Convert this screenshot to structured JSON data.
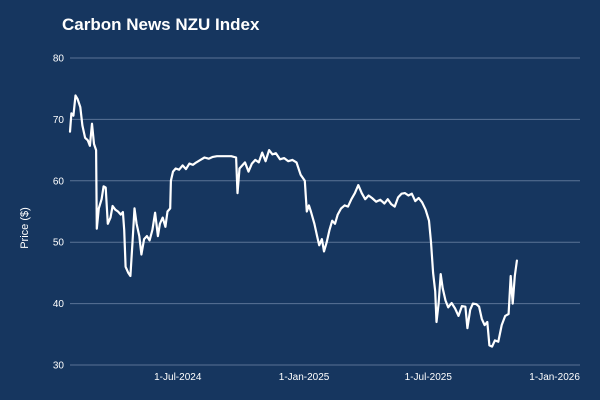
{
  "chart_data": {
    "type": "line",
    "title": "Carbon News NZU Index",
    "ylabel": "Price ($)",
    "xlabel": "",
    "ylim": [
      30,
      80
    ],
    "yticks": [
      30,
      40,
      50,
      60,
      70,
      80
    ],
    "xlim": [
      "2024-01-26",
      "2026-02-07"
    ],
    "xticks": [
      {
        "date": "2024-07-01",
        "label": "1-Jul-2024"
      },
      {
        "date": "2025-01-01",
        "label": "1-Jan-2025"
      },
      {
        "date": "2025-07-01",
        "label": "1-Jul-2025"
      },
      {
        "date": "2026-01-01",
        "label": "1-Jan-2026"
      }
    ],
    "grid": true,
    "colors": {
      "background": "#16365f",
      "line": "#ffffff",
      "grid": "#5a7396"
    },
    "series": [
      {
        "values": [
          [
            "2024-01-26",
            68.0
          ],
          [
            "2024-01-28",
            71.0
          ],
          [
            "2024-01-31",
            70.6
          ],
          [
            "2024-02-03",
            73.9
          ],
          [
            "2024-02-06",
            73.3
          ],
          [
            "2024-02-10",
            72.0
          ],
          [
            "2024-02-13",
            69.0
          ],
          [
            "2024-02-17",
            67.0
          ],
          [
            "2024-02-21",
            66.6
          ],
          [
            "2024-02-24",
            65.7
          ],
          [
            "2024-02-27",
            69.3
          ],
          [
            "2024-03-01",
            66.0
          ],
          [
            "2024-03-04",
            65.0
          ],
          [
            "2024-03-05",
            52.2
          ],
          [
            "2024-03-08",
            55.5
          ],
          [
            "2024-03-12",
            57.0
          ],
          [
            "2024-03-15",
            59.1
          ],
          [
            "2024-03-18",
            58.9
          ],
          [
            "2024-03-21",
            53.0
          ],
          [
            "2024-03-25",
            54.0
          ],
          [
            "2024-03-28",
            55.9
          ],
          [
            "2024-04-01",
            55.3
          ],
          [
            "2024-04-05",
            55.0
          ],
          [
            "2024-04-09",
            54.5
          ],
          [
            "2024-04-12",
            54.9
          ],
          [
            "2024-04-14",
            52.0
          ],
          [
            "2024-04-16",
            46.0
          ],
          [
            "2024-04-20",
            45.0
          ],
          [
            "2024-04-23",
            44.5
          ],
          [
            "2024-04-26",
            50.0
          ],
          [
            "2024-04-29",
            55.5
          ],
          [
            "2024-05-02",
            53.0
          ],
          [
            "2024-05-06",
            51.0
          ],
          [
            "2024-05-09",
            48.0
          ],
          [
            "2024-05-13",
            50.5
          ],
          [
            "2024-05-17",
            51.0
          ],
          [
            "2024-05-21",
            50.3
          ],
          [
            "2024-05-25",
            52.0
          ],
          [
            "2024-05-29",
            54.8
          ],
          [
            "2024-06-02",
            51.0
          ],
          [
            "2024-06-05",
            53.0
          ],
          [
            "2024-06-09",
            54.0
          ],
          [
            "2024-06-13",
            52.5
          ],
          [
            "2024-06-16",
            55.0
          ],
          [
            "2024-06-20",
            55.5
          ],
          [
            "2024-06-21",
            60.0
          ],
          [
            "2024-06-24",
            61.5
          ],
          [
            "2024-06-28",
            62.0
          ],
          [
            "2024-07-03",
            61.8
          ],
          [
            "2024-07-08",
            62.5
          ],
          [
            "2024-07-13",
            61.9
          ],
          [
            "2024-07-18",
            62.8
          ],
          [
            "2024-07-23",
            62.6
          ],
          [
            "2024-07-28",
            63.0
          ],
          [
            "2024-08-03",
            63.4
          ],
          [
            "2024-08-09",
            63.8
          ],
          [
            "2024-08-15",
            63.6
          ],
          [
            "2024-08-21",
            63.9
          ],
          [
            "2024-08-27",
            64.0
          ],
          [
            "2024-09-03",
            64.0
          ],
          [
            "2024-09-10",
            64.0
          ],
          [
            "2024-09-17",
            64.0
          ],
          [
            "2024-09-24",
            63.8
          ],
          [
            "2024-09-26",
            58.0
          ],
          [
            "2024-09-29",
            62.0
          ],
          [
            "2024-10-03",
            62.5
          ],
          [
            "2024-10-07",
            63.0
          ],
          [
            "2024-10-12",
            61.5
          ],
          [
            "2024-10-17",
            62.8
          ],
          [
            "2024-10-22",
            63.4
          ],
          [
            "2024-10-27",
            63.0
          ],
          [
            "2024-11-01",
            64.6
          ],
          [
            "2024-11-06",
            63.2
          ],
          [
            "2024-11-11",
            65.0
          ],
          [
            "2024-11-16",
            64.3
          ],
          [
            "2024-11-21",
            64.5
          ],
          [
            "2024-11-27",
            63.5
          ],
          [
            "2024-12-03",
            63.7
          ],
          [
            "2024-12-09",
            63.2
          ],
          [
            "2024-12-15",
            63.4
          ],
          [
            "2024-12-21",
            63.0
          ],
          [
            "2024-12-27",
            61.0
          ],
          [
            "2025-01-02",
            60.0
          ],
          [
            "2025-01-05",
            55.0
          ],
          [
            "2025-01-08",
            56.0
          ],
          [
            "2025-01-11",
            55.0
          ],
          [
            "2025-01-16",
            53.0
          ],
          [
            "2025-01-20",
            51.0
          ],
          [
            "2025-01-23",
            49.5
          ],
          [
            "2025-01-27",
            50.5
          ],
          [
            "2025-01-30",
            48.5
          ],
          [
            "2025-02-03",
            50.0
          ],
          [
            "2025-02-07",
            52.0
          ],
          [
            "2025-02-11",
            53.5
          ],
          [
            "2025-02-15",
            53.0
          ],
          [
            "2025-02-19",
            54.5
          ],
          [
            "2025-02-24",
            55.5
          ],
          [
            "2025-03-01",
            56.0
          ],
          [
            "2025-03-06",
            55.8
          ],
          [
            "2025-03-11",
            57.0
          ],
          [
            "2025-03-16",
            58.0
          ],
          [
            "2025-03-21",
            59.3
          ],
          [
            "2025-03-26",
            58.0
          ],
          [
            "2025-03-31",
            57.0
          ],
          [
            "2025-04-05",
            57.6
          ],
          [
            "2025-04-10",
            57.2
          ],
          [
            "2025-04-16",
            56.6
          ],
          [
            "2025-04-22",
            56.9
          ],
          [
            "2025-04-28",
            56.3
          ],
          [
            "2025-05-03",
            57.0
          ],
          [
            "2025-05-08",
            56.2
          ],
          [
            "2025-05-13",
            55.8
          ],
          [
            "2025-05-18",
            57.3
          ],
          [
            "2025-05-23",
            57.9
          ],
          [
            "2025-05-28",
            58.0
          ],
          [
            "2025-06-02",
            57.6
          ],
          [
            "2025-06-07",
            57.9
          ],
          [
            "2025-06-12",
            56.7
          ],
          [
            "2025-06-17",
            57.2
          ],
          [
            "2025-06-22",
            56.5
          ],
          [
            "2025-06-27",
            55.3
          ],
          [
            "2025-07-02",
            53.5
          ],
          [
            "2025-07-05",
            50.0
          ],
          [
            "2025-07-08",
            45.0
          ],
          [
            "2025-07-11",
            42.0
          ],
          [
            "2025-07-13",
            37.0
          ],
          [
            "2025-07-16",
            40.0
          ],
          [
            "2025-07-19",
            44.8
          ],
          [
            "2025-07-22",
            42.5
          ],
          [
            "2025-07-26",
            40.5
          ],
          [
            "2025-07-30",
            39.4
          ],
          [
            "2025-08-04",
            40.1
          ],
          [
            "2025-08-09",
            39.2
          ],
          [
            "2025-08-14",
            38.0
          ],
          [
            "2025-08-19",
            39.6
          ],
          [
            "2025-08-24",
            39.5
          ],
          [
            "2025-08-27",
            36.0
          ],
          [
            "2025-08-31",
            39.0
          ],
          [
            "2025-09-04",
            40.0
          ],
          [
            "2025-09-09",
            39.9
          ],
          [
            "2025-09-13",
            39.5
          ],
          [
            "2025-09-17",
            37.5
          ],
          [
            "2025-09-21",
            36.5
          ],
          [
            "2025-09-25",
            37.0
          ],
          [
            "2025-09-28",
            33.2
          ],
          [
            "2025-10-02",
            33.0
          ],
          [
            "2025-10-06",
            34.0
          ],
          [
            "2025-10-11",
            33.8
          ],
          [
            "2025-10-16",
            36.5
          ],
          [
            "2025-10-21",
            38.0
          ],
          [
            "2025-10-26",
            38.3
          ],
          [
            "2025-10-29",
            44.5
          ],
          [
            "2025-11-01",
            40.0
          ],
          [
            "2025-11-04",
            44.5
          ],
          [
            "2025-11-07",
            47.0
          ]
        ]
      }
    ]
  }
}
